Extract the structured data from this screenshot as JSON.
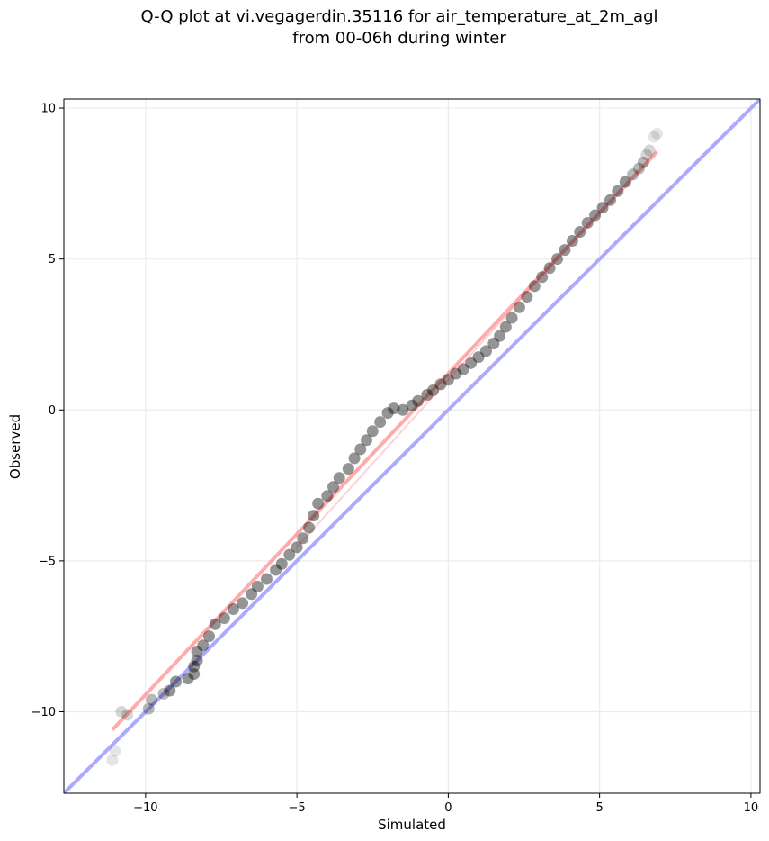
{
  "chart_data": {
    "type": "scatter",
    "title": [
      "Q-Q plot at vi.vegagerdin.35116 for air_temperature_at_2m_agl",
      "from 00-06h during winter"
    ],
    "xlabel": "Simulated",
    "ylabel": "Observed",
    "xlim": [
      -12.7,
      10.3
    ],
    "ylim": [
      -12.7,
      10.3
    ],
    "xticks": [
      -10,
      -5,
      0,
      5,
      10
    ],
    "yticks": [
      -10,
      -5,
      0,
      5,
      10
    ],
    "xtick_labels": [
      "−10",
      "−5",
      "0",
      "5",
      "10"
    ],
    "ytick_labels": [
      "−10",
      "−5",
      "0",
      "5",
      "10"
    ],
    "grid": true,
    "colors": {
      "points": "#000000",
      "identity_line": "#aaaaff",
      "fit_line": "#ff0000",
      "grid": "#ebebeb"
    },
    "series": [
      {
        "kind": "points",
        "points": [
          [
            -11.1,
            -11.6
          ],
          [
            -11.0,
            -11.3
          ],
          [
            -10.8,
            -10.0
          ],
          [
            -10.6,
            -10.1
          ],
          [
            -9.9,
            -9.9
          ],
          [
            -9.8,
            -9.6
          ],
          [
            -9.4,
            -9.4
          ],
          [
            -9.2,
            -9.3
          ],
          [
            -9.0,
            -9.0
          ],
          [
            -8.6,
            -8.9
          ],
          [
            -8.4,
            -8.75
          ],
          [
            -8.4,
            -8.5
          ],
          [
            -8.3,
            -8.3
          ],
          [
            -8.3,
            -8.0
          ],
          [
            -8.1,
            -7.8
          ],
          [
            -7.9,
            -7.5
          ],
          [
            -7.7,
            -7.1
          ],
          [
            -7.4,
            -6.9
          ],
          [
            -7.1,
            -6.6
          ],
          [
            -6.8,
            -6.4
          ],
          [
            -6.5,
            -6.1
          ],
          [
            -6.3,
            -5.85
          ],
          [
            -6.0,
            -5.6
          ],
          [
            -5.7,
            -5.3
          ],
          [
            -5.5,
            -5.1
          ],
          [
            -5.25,
            -4.8
          ],
          [
            -5.0,
            -4.55
          ],
          [
            -4.8,
            -4.25
          ],
          [
            -4.6,
            -3.9
          ],
          [
            -4.45,
            -3.5
          ],
          [
            -4.3,
            -3.1
          ],
          [
            -4.0,
            -2.85
          ],
          [
            -3.8,
            -2.55
          ],
          [
            -3.6,
            -2.25
          ],
          [
            -3.3,
            -1.95
          ],
          [
            -3.1,
            -1.6
          ],
          [
            -2.9,
            -1.3
          ],
          [
            -2.7,
            -1.0
          ],
          [
            -2.5,
            -0.7
          ],
          [
            -2.25,
            -0.4
          ],
          [
            -2.0,
            -0.1
          ],
          [
            -1.8,
            0.05
          ],
          [
            -1.5,
            0.0
          ],
          [
            -1.2,
            0.15
          ],
          [
            -1.0,
            0.3
          ],
          [
            -0.7,
            0.5
          ],
          [
            -0.5,
            0.65
          ],
          [
            -0.25,
            0.85
          ],
          [
            0.0,
            1.0
          ],
          [
            0.25,
            1.2
          ],
          [
            0.5,
            1.35
          ],
          [
            0.75,
            1.55
          ],
          [
            1.0,
            1.75
          ],
          [
            1.25,
            1.95
          ],
          [
            1.5,
            2.2
          ],
          [
            1.7,
            2.45
          ],
          [
            1.9,
            2.75
          ],
          [
            2.1,
            3.05
          ],
          [
            2.35,
            3.4
          ],
          [
            2.6,
            3.75
          ],
          [
            2.85,
            4.1
          ],
          [
            3.1,
            4.4
          ],
          [
            3.35,
            4.7
          ],
          [
            3.6,
            5.0
          ],
          [
            3.85,
            5.3
          ],
          [
            4.1,
            5.6
          ],
          [
            4.35,
            5.9
          ],
          [
            4.6,
            6.2
          ],
          [
            4.85,
            6.45
          ],
          [
            5.1,
            6.7
          ],
          [
            5.35,
            6.95
          ],
          [
            5.6,
            7.25
          ],
          [
            5.85,
            7.55
          ],
          [
            6.1,
            7.8
          ],
          [
            6.3,
            8.0
          ],
          [
            6.45,
            8.2
          ],
          [
            6.55,
            8.45
          ],
          [
            6.65,
            8.6
          ],
          [
            6.8,
            9.05
          ],
          [
            6.9,
            9.15
          ]
        ]
      },
      {
        "kind": "line",
        "role": "identity",
        "points": [
          [
            -12.7,
            -12.7
          ],
          [
            10.3,
            10.3
          ]
        ]
      },
      {
        "kind": "line",
        "role": "fit",
        "points": [
          [
            -11.1,
            -10.6
          ],
          [
            6.9,
            8.55
          ]
        ]
      }
    ]
  }
}
